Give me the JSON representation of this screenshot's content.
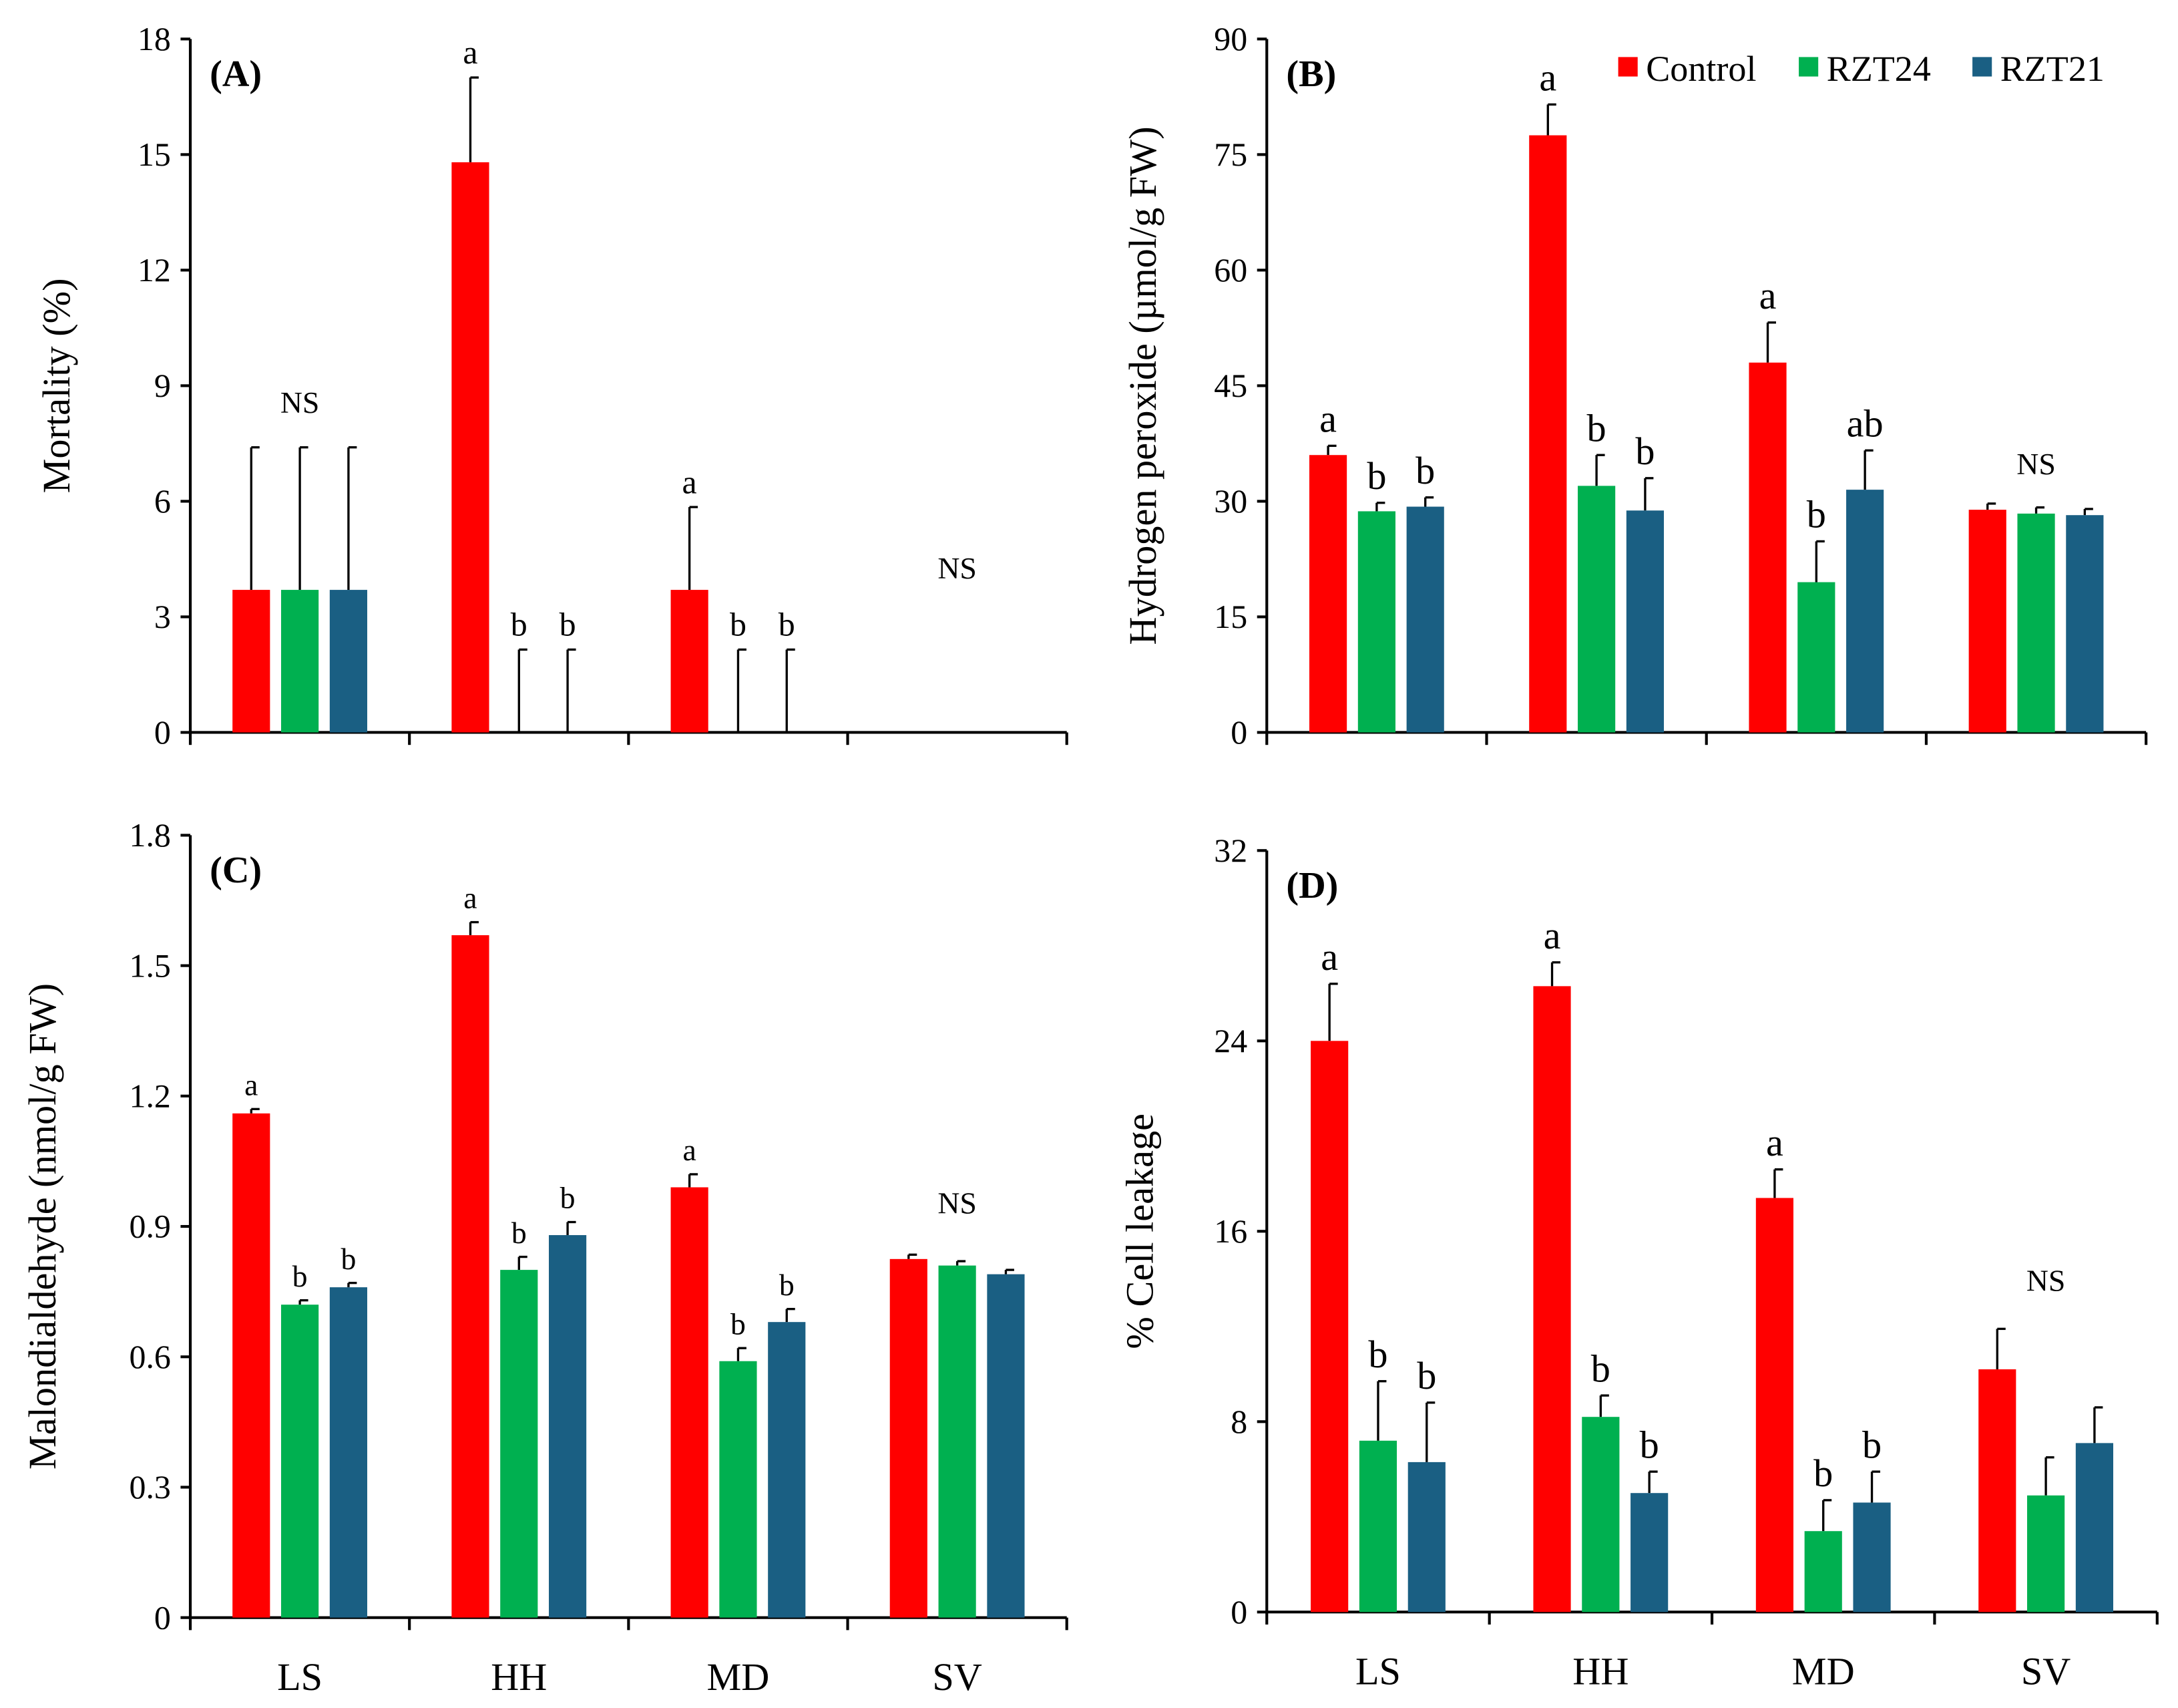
{
  "legend": [
    {
      "name": "Control",
      "color": "#ff0000"
    },
    {
      "name": "RZT24",
      "color": "#00b050"
    },
    {
      "name": "RZT21",
      "color": "#1a5f83"
    }
  ],
  "chart_data": [
    {
      "type": "bar",
      "panel": "(A)",
      "ylabel": "Mortality (%)",
      "ylim": [
        0,
        18
      ],
      "yticks": [
        "0",
        "3",
        "6",
        "9",
        "12",
        "15",
        "18"
      ],
      "categories": [
        "LS",
        "HH",
        "MD",
        "SV"
      ],
      "show_xlabels": false,
      "series": [
        {
          "name": "Control",
          "values": [
            3.7,
            14.8,
            3.7,
            0
          ],
          "err_top": [
            7.4,
            17.0,
            5.85,
            0
          ],
          "letters": [
            "",
            "a",
            "a",
            ""
          ]
        },
        {
          "name": "RZT24",
          "values": [
            3.7,
            0,
            0,
            0
          ],
          "err_top": [
            7.4,
            2.15,
            2.15,
            0
          ],
          "letters": [
            "",
            "b",
            "b",
            ""
          ]
        },
        {
          "name": "RZT21",
          "values": [
            3.7,
            0,
            0,
            0
          ],
          "err_top": [
            7.4,
            2.15,
            2.15,
            0
          ],
          "letters": [
            "",
            "b",
            "b",
            ""
          ]
        }
      ],
      "group_notes": [
        {
          "text": "NS",
          "y": 8.3
        },
        {
          "text": "",
          "y": 0
        },
        {
          "text": "",
          "y": 0
        },
        {
          "text": "NS",
          "y": 4.0
        }
      ]
    },
    {
      "type": "bar",
      "panel": "(B)",
      "ylabel": "Hydrogen peroxide  (µmol/g FW)",
      "ylim": [
        0,
        90
      ],
      "yticks": [
        "0",
        "15",
        "30",
        "45",
        "60",
        "75",
        "90"
      ],
      "categories": [
        "LS",
        "HH",
        "MD",
        "SV"
      ],
      "show_xlabels": false,
      "legend": "top-right",
      "series": [
        {
          "name": "Control",
          "values": [
            36,
            77.5,
            48,
            28.9
          ],
          "err_top": [
            37.2,
            81.5,
            53.2,
            29.7
          ],
          "letters": [
            "a",
            "a",
            "a",
            ""
          ]
        },
        {
          "name": "RZT24",
          "values": [
            28.7,
            32,
            19.5,
            28.4
          ],
          "err_top": [
            29.8,
            36,
            24.8,
            29.2
          ],
          "letters": [
            "b",
            "b",
            "b",
            ""
          ]
        },
        {
          "name": "RZT21",
          "values": [
            29.3,
            28.8,
            31.5,
            28.2
          ],
          "err_top": [
            30.5,
            33,
            36.6,
            29.0
          ],
          "letters": [
            "b",
            "b",
            "ab",
            ""
          ]
        }
      ],
      "group_notes": [
        {
          "text": "",
          "y": 0
        },
        {
          "text": "",
          "y": 0
        },
        {
          "text": "",
          "y": 0
        },
        {
          "text": "NS",
          "y": 33.5
        }
      ]
    },
    {
      "type": "bar",
      "panel": "(C)",
      "ylabel": "Malondialdehyde (nmol/g FW)",
      "ylim": [
        0,
        1.8
      ],
      "yticks": [
        "0",
        "0.3",
        "0.6",
        "0.9",
        "1.2",
        "1.5",
        "1.8"
      ],
      "categories": [
        "LS",
        "HH",
        "MD",
        "SV"
      ],
      "show_xlabels": true,
      "series": [
        {
          "name": "Control",
          "values": [
            1.16,
            1.57,
            0.99,
            0.825
          ],
          "err_top": [
            1.17,
            1.6,
            1.02,
            0.835
          ],
          "letters": [
            "a",
            "a",
            "a",
            ""
          ]
        },
        {
          "name": "RZT24",
          "values": [
            0.72,
            0.8,
            0.59,
            0.81
          ],
          "err_top": [
            0.73,
            0.83,
            0.62,
            0.82
          ],
          "letters": [
            "b",
            "b",
            "b",
            ""
          ]
        },
        {
          "name": "RZT21",
          "values": [
            0.76,
            0.88,
            0.68,
            0.79
          ],
          "err_top": [
            0.77,
            0.91,
            0.71,
            0.8
          ],
          "letters": [
            "b",
            "b",
            "b",
            ""
          ]
        }
      ],
      "group_notes": [
        {
          "text": "",
          "y": 0
        },
        {
          "text": "",
          "y": 0
        },
        {
          "text": "",
          "y": 0
        },
        {
          "text": "NS",
          "y": 0.93
        }
      ]
    },
    {
      "type": "bar",
      "panel": "(D)",
      "ylabel": "% Cell leakage",
      "ylim": [
        0,
        32
      ],
      "yticks": [
        "0",
        "8",
        "16",
        "24",
        "32"
      ],
      "categories": [
        "LS",
        "HH",
        "MD",
        "SV"
      ],
      "show_xlabels": true,
      "series": [
        {
          "name": "Control",
          "values": [
            24,
            26.3,
            17.4,
            10.2
          ],
          "err_top": [
            26.4,
            27.3,
            18.6,
            11.9
          ],
          "letters": [
            "a",
            "a",
            "a",
            ""
          ]
        },
        {
          "name": "RZT24",
          "values": [
            7.2,
            8.2,
            3.4,
            4.9
          ],
          "err_top": [
            9.7,
            9.1,
            4.7,
            6.5
          ],
          "letters": [
            "b",
            "b",
            "b",
            ""
          ]
        },
        {
          "name": "RZT21",
          "values": [
            6.3,
            5.0,
            4.6,
            7.1
          ],
          "err_top": [
            8.8,
            5.9,
            5.9,
            8.6
          ],
          "letters": [
            "b",
            "b",
            "b",
            ""
          ]
        }
      ],
      "group_notes": [
        {
          "text": "",
          "y": 0
        },
        {
          "text": "",
          "y": 0
        },
        {
          "text": "",
          "y": 0
        },
        {
          "text": "NS",
          "y": 13.5
        }
      ]
    }
  ]
}
